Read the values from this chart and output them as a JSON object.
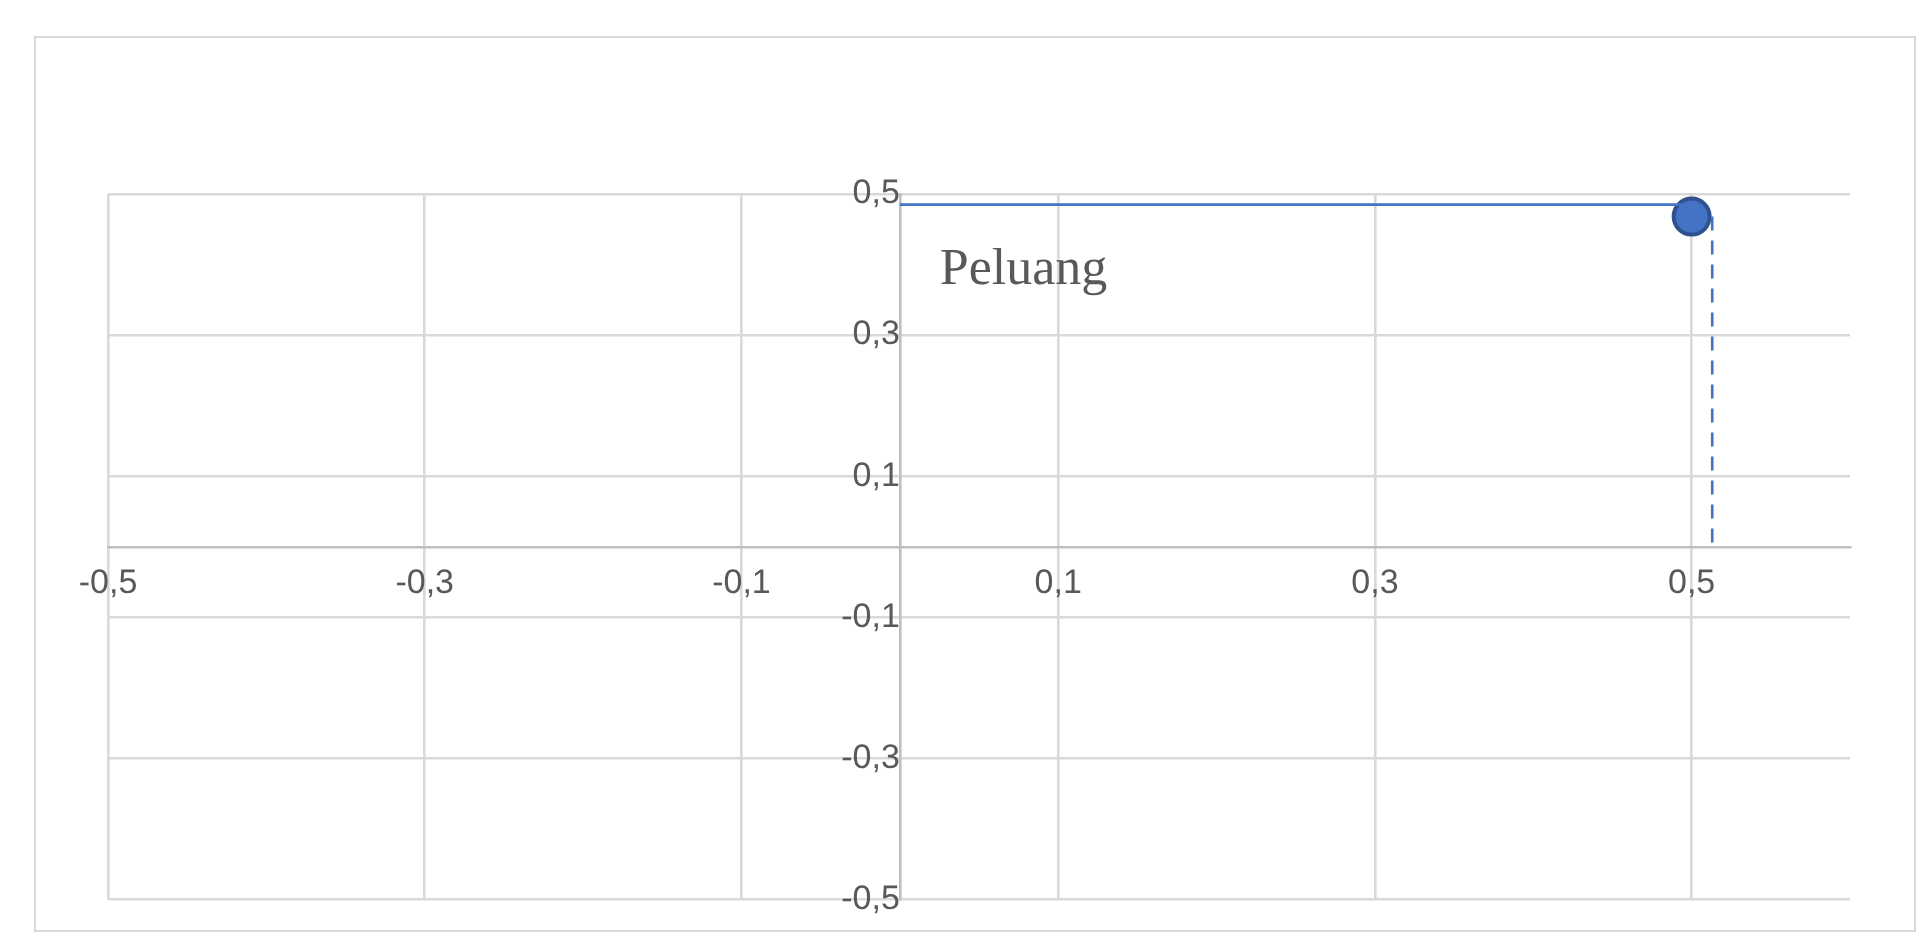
{
  "chart_data": {
    "type": "scatter",
    "xlim": [
      -0.5,
      0.6
    ],
    "ylim": [
      -0.5,
      0.5
    ],
    "xticks": [
      {
        "value": -0.5,
        "label": "-0,5"
      },
      {
        "value": -0.3,
        "label": "-0,3"
      },
      {
        "value": -0.1,
        "label": "-0,1"
      },
      {
        "value": 0.1,
        "label": "0,1"
      },
      {
        "value": 0.3,
        "label": "0,3"
      },
      {
        "value": 0.5,
        "label": "0,5"
      }
    ],
    "yticks": [
      {
        "value": -0.5,
        "label": "-0,5"
      },
      {
        "value": -0.3,
        "label": "-0,3"
      },
      {
        "value": -0.1,
        "label": "-0,1"
      },
      {
        "value": 0.1,
        "label": "0,1"
      },
      {
        "value": 0.3,
        "label": "0,3"
      },
      {
        "value": 0.5,
        "label": "0,5"
      }
    ],
    "grid": true,
    "legend": false,
    "series": [
      {
        "type": "line",
        "color": "#4472c4",
        "x": [
          0,
          0.5
        ],
        "values": [
          0.485,
          0.485
        ],
        "marker": "none",
        "line_style": "solid"
      },
      {
        "type": "line",
        "color": "#4472c4",
        "x": [
          0.513,
          0.513
        ],
        "values": [
          0.468,
          0
        ],
        "marker": "none",
        "line_style": "dashed"
      },
      {
        "type": "scatter",
        "color": "#4472c4",
        "x": [
          0.5
        ],
        "values": [
          0.468
        ],
        "marker": "circle"
      }
    ],
    "annotations": [
      "Peluang"
    ]
  }
}
